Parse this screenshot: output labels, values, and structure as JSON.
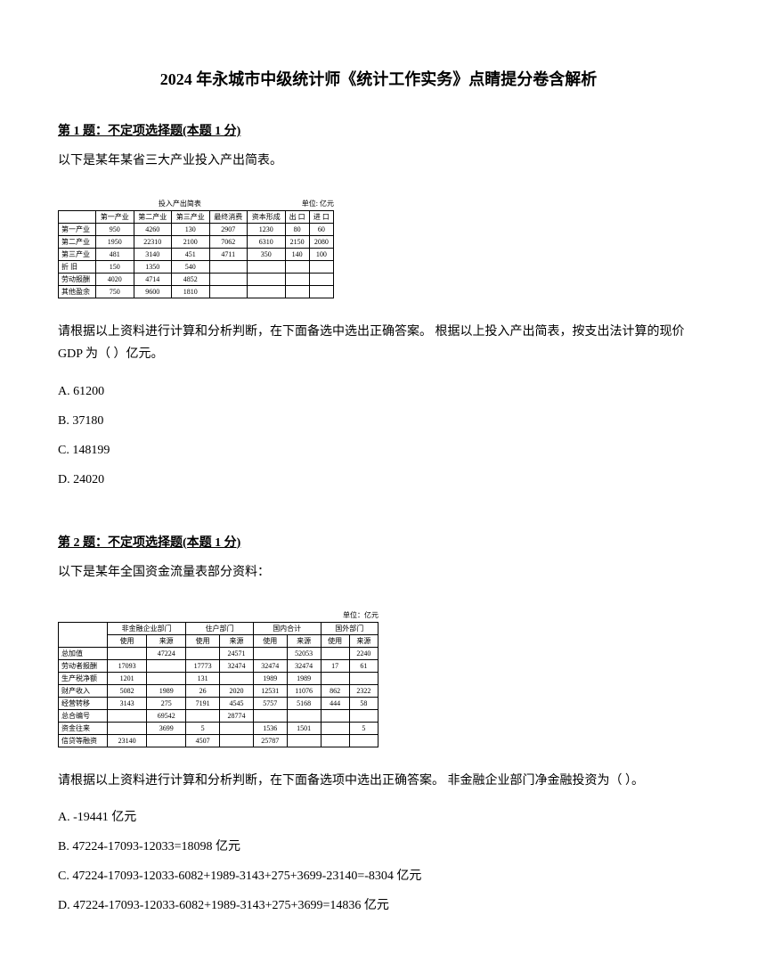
{
  "title": "2024 年永城市中级统计师《统计工作实务》点睛提分卷含解析",
  "q1": {
    "header_prefix": "第 1 题：",
    "header_main": "不定项选择题(本题 1 分)",
    "intro": "以下是某年某省三大产业投入产出简表。",
    "table_title": "投入产出简表",
    "table_unit": "单位: 亿元",
    "columns": [
      "",
      "第一产业",
      "第二产业",
      "第三产业",
      "最终消费",
      "资本形成",
      "出  口",
      "进  口"
    ],
    "rows": [
      [
        "第一产业",
        "950",
        "4260",
        "130",
        "2907",
        "1230",
        "80",
        "60"
      ],
      [
        "第二产业",
        "1950",
        "22310",
        "2100",
        "7062",
        "6310",
        "2150",
        "2080"
      ],
      [
        "第三产业",
        "481",
        "3140",
        "451",
        "4711",
        "350",
        "140",
        "100"
      ],
      [
        "折  旧",
        "150",
        "1350",
        "540",
        "",
        "",
        "",
        ""
      ],
      [
        "劳动报酬",
        "4020",
        "4714",
        "4852",
        "",
        "",
        "",
        ""
      ],
      [
        "其他盈余",
        "750",
        "9600",
        "1810",
        "",
        "",
        "",
        ""
      ]
    ],
    "question": "请根据以上资料进行计算和分析判断，在下面备选中选出正确答案。 根据以上投入产出简表，按支出法计算的现价 GDP 为（ ）亿元。",
    "options": {
      "a": "A. 61200",
      "b": "B. 37180",
      "c": "C. 148199",
      "d": "D. 24020"
    }
  },
  "q2": {
    "header_prefix": "第 2 题：",
    "header_main": "不定项选择题(本题 1 分)",
    "intro": "以下是某年全国资金流量表部分资料：",
    "table_unit": "单位：亿元",
    "top_headers": [
      "",
      "非金融企业部门",
      "住户部门",
      "国内合计",
      "国外部门"
    ],
    "sub_headers": [
      "",
      "使用",
      "来源",
      "使用",
      "来源",
      "使用",
      "来源",
      "使用",
      "来源"
    ],
    "rows": [
      [
        "总加值",
        "",
        "47224",
        "",
        "24571",
        "",
        "52053",
        "",
        "2240"
      ],
      [
        "劳动者报酬",
        "17093",
        "",
        "17773",
        "32474",
        "32474",
        "32474",
        "17",
        "61"
      ],
      [
        "生产税净额",
        "1201",
        "",
        "131",
        "",
        "1989",
        "1989",
        "",
        ""
      ],
      [
        "财产收入",
        "5082",
        "1989",
        "26",
        "2020",
        "12531",
        "11076",
        "862",
        "2322"
      ],
      [
        "经营转移",
        "3143",
        "275",
        "7191",
        "4545",
        "5757",
        "5168",
        "444",
        "58"
      ],
      [
        "总合编号",
        "",
        "69542",
        "",
        "28774",
        "",
        "",
        "",
        ""
      ],
      [
        "资金往来",
        "",
        "3699",
        "5",
        "",
        "1536",
        "1501",
        "",
        "5"
      ],
      [
        "信贷等融资",
        "23140",
        "",
        "4507",
        "",
        "25787",
        "",
        "",
        ""
      ]
    ],
    "question": "请根据以上资料进行计算和分析判断，在下面备选项中选出正确答案。 非金融企业部门净金融投资为（ ）。",
    "options": {
      "a": "A. -19441 亿元",
      "b": "B. 47224-17093-12033=18098 亿元",
      "c": "C. 47224-17093-12033-6082+1989-3143+275+3699-23140=-8304 亿元",
      "d": "D. 47224-17093-12033-6082+1989-3143+275+3699=14836 亿元"
    }
  }
}
